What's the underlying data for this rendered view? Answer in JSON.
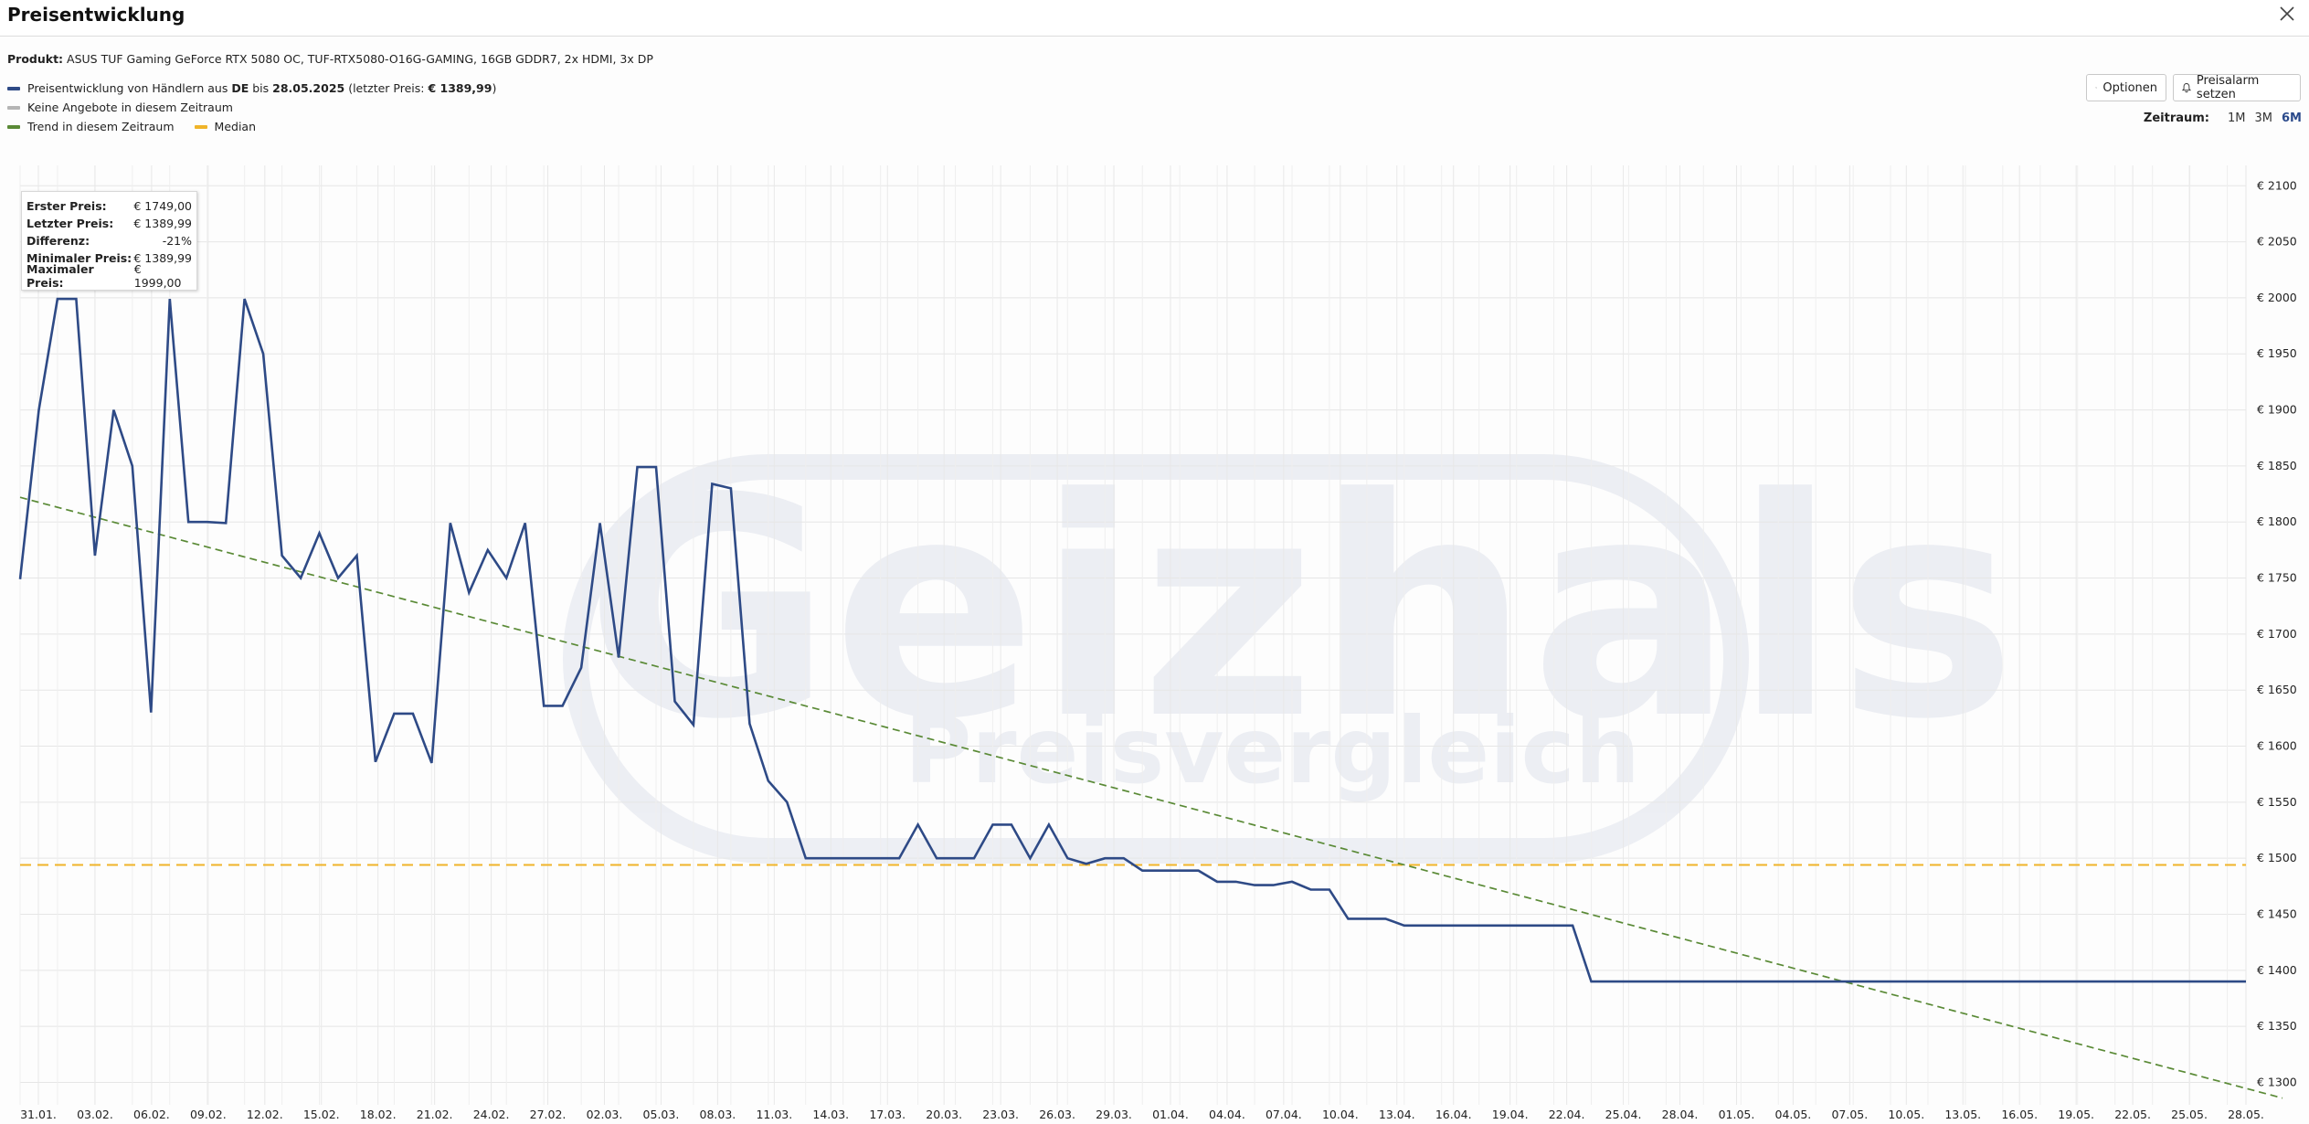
{
  "window": {
    "title": "Preisentwicklung",
    "close_icon": "close-icon"
  },
  "product": {
    "label": "Produkt:",
    "name": "ASUS TUF Gaming GeForce RTX 5080 OC, TUF-RTX5080-O16G-GAMING, 16GB GDDR7, 2x HDMI, 3x DP"
  },
  "legend": {
    "price_prefix": "Preisentwicklung von Händlern aus",
    "country": "DE",
    "until": "bis",
    "date": "28.05.2025",
    "last_open": "(letzter Preis:",
    "last_price": "€ 1389,99",
    "last_close": ")",
    "no_offers": "Keine Angebote in diesem Zeitraum",
    "trend": "Trend in diesem Zeitraum",
    "median": "Median"
  },
  "buttons": {
    "options": "Optionen",
    "alarm": "Preisalarm setzen"
  },
  "range": {
    "label": "Zeitraum:",
    "options": [
      "1M",
      "3M",
      "6M"
    ],
    "active": "6M"
  },
  "stats": {
    "first_label": "Erster Preis:",
    "first_value": "€ 1749,00",
    "last_label": "Letzter Preis:",
    "last_value": "€ 1389,99",
    "diff_label": "Differenz:",
    "diff_value": "-21%",
    "min_label": "Minimaler Preis:",
    "min_value": "€ 1389,99",
    "max_label": "Maximaler Preis:",
    "max_value": "€ 1999,00"
  },
  "colors": {
    "price": "#2e4a86",
    "trend": "#5a8a36",
    "median": "#f0b429",
    "no_offers": "#b5b5b5",
    "grid": "#e6e6e6",
    "accent": "#2b4a8b"
  },
  "watermark": {
    "brand": "Geizhals",
    "tagline": "Preisvergleich"
  },
  "chart_data": {
    "type": "line",
    "x_start": "30.01.2025",
    "x_end": "28.05.2025",
    "ylim": [
      1280,
      2110
    ],
    "y_ticks": [
      1300,
      1350,
      1400,
      1450,
      1500,
      1550,
      1600,
      1650,
      1700,
      1750,
      1800,
      1850,
      1900,
      1950,
      2000,
      2050,
      2100
    ],
    "y_tick_labels": [
      "€ 1300",
      "€ 1350",
      "€ 1400",
      "€ 1450",
      "€ 1500",
      "€ 1550",
      "€ 1600",
      "€ 1650",
      "€ 1700",
      "€ 1750",
      "€ 1800",
      "€ 1850",
      "€ 1900",
      "€ 1950",
      "€ 2000",
      "€ 2050",
      "€ 2100"
    ],
    "x_tick_labels": [
      "31.01.",
      "03.02.",
      "06.02.",
      "09.02.",
      "12.02.",
      "15.02.",
      "18.02.",
      "21.02.",
      "24.02.",
      "27.02.",
      "02.03.",
      "05.03.",
      "08.03.",
      "11.03.",
      "14.03.",
      "17.03.",
      "20.03.",
      "23.03.",
      "26.03.",
      "29.03.",
      "01.04.",
      "04.04.",
      "07.04.",
      "10.04.",
      "13.04.",
      "16.04.",
      "19.04.",
      "22.04.",
      "25.04.",
      "28.04.",
      "01.05.",
      "04.05.",
      "07.05.",
      "10.05.",
      "13.05.",
      "16.05.",
      "19.05.",
      "22.05.",
      "25.05.",
      "28.05."
    ],
    "x_year_label": "2025",
    "grid": true,
    "median": 1494,
    "trend": {
      "start": 1822,
      "end": 1286
    },
    "series": [
      {
        "values": [
          1749,
          1900,
          1999,
          1999,
          1770,
          1900,
          1850,
          1630,
          1999,
          1800,
          1800,
          1799,
          1999,
          1950,
          1770,
          1750,
          1790,
          1750,
          1770,
          1586,
          1629,
          1629,
          1585,
          1799,
          1737,
          1775,
          1750,
          1799,
          1636,
          1636,
          1670,
          1799,
          1679,
          1849,
          1849,
          1640,
          1619,
          1834,
          1830,
          1620,
          1569,
          1550,
          1500,
          1500,
          1500,
          1500,
          1500,
          1500,
          1530,
          1500,
          1500,
          1500,
          1530,
          1530,
          1500,
          1530,
          1500,
          1495,
          1500,
          1500,
          1489,
          1489,
          1489,
          1489,
          1479,
          1479,
          1476,
          1476,
          1479,
          1472,
          1472,
          1446,
          1446,
          1446,
          1440,
          1440,
          1440,
          1440,
          1440,
          1440,
          1440,
          1440,
          1440,
          1440,
          1390,
          1390,
          1390,
          1390,
          1390,
          1390,
          1390,
          1390,
          1390,
          1390,
          1390,
          1390,
          1390,
          1390,
          1390,
          1390,
          1390,
          1390,
          1390,
          1390,
          1390,
          1390,
          1390,
          1390,
          1390,
          1390,
          1390,
          1390,
          1390,
          1390,
          1390,
          1390,
          1390,
          1390,
          1390,
          1390
        ]
      }
    ]
  }
}
